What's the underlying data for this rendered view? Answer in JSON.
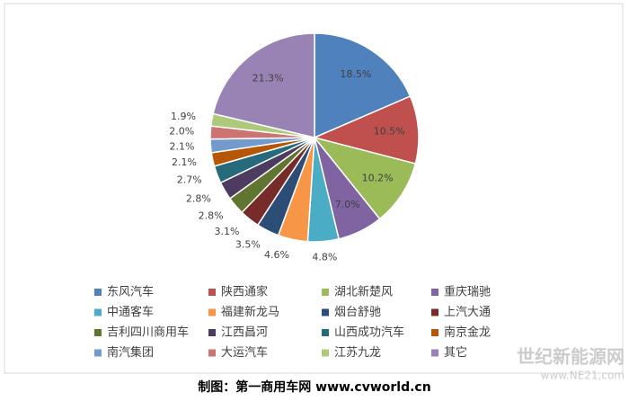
{
  "chart_data": {
    "type": "pie",
    "categories": [
      "东风汽车",
      "陕西通家",
      "湖北新楚风",
      "重庆瑞驰",
      "中通客车",
      "福建新龙马",
      "烟台舒驰",
      "上汽大通",
      "吉利四川商用车",
      "江西昌河",
      "山西成功汽车",
      "南京金龙",
      "南汽集团",
      "大运汽车",
      "江苏九龙",
      "其它"
    ],
    "values": [
      18.5,
      10.5,
      10.2,
      7.0,
      4.8,
      4.6,
      3.5,
      3.1,
      2.8,
      2.8,
      2.7,
      2.1,
      2.1,
      2.0,
      1.9,
      21.3
    ],
    "value_labels": [
      "18.5%",
      "10.5%",
      "10.2%",
      "7.0%",
      "4.8%",
      "4.6%",
      "3.5%",
      "3.1%",
      "2.8%",
      "2.8%",
      "2.7%",
      "2.1%",
      "2.1%",
      "2.0%",
      "1.9%",
      "21.3%"
    ],
    "colors": [
      "#4f81bd",
      "#c0504d",
      "#9bbb59",
      "#8064a2",
      "#4bacc6",
      "#f79646",
      "#2c4d75",
      "#772c2a",
      "#5f7530",
      "#4d3b62",
      "#276a7c",
      "#b65708",
      "#729aca",
      "#cd7371",
      "#afc97a",
      "#9983b5"
    ],
    "legend": "bottom"
  },
  "caption": "制图：第一商用车网 www.cvworld.cn",
  "watermark": [
    "世纪新能源网",
    "www.NE21.com"
  ]
}
